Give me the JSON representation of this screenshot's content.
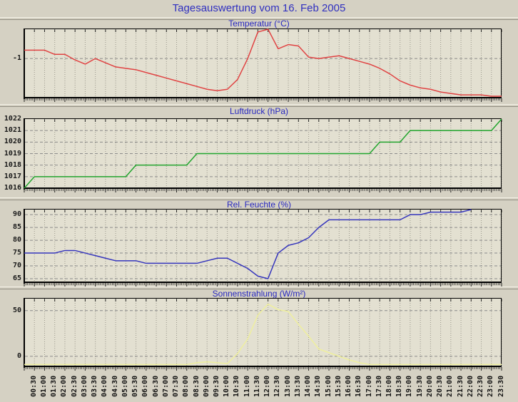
{
  "page": {
    "title": "Tagesauswertung vom 16. Feb 2005"
  },
  "colors": {
    "background": "#d5d1c3",
    "plot_background": "#e3e0d1",
    "title_text": "#3030c0",
    "axis": "#000000",
    "grid_vertical": "#9a978c",
    "grid_horizontal": "#8a8a8a",
    "tick": "#222222",
    "label_text": "#1a1a1a",
    "temperature_line": "#e04343",
    "pressure_line": "#22a52e",
    "humidity_line": "#3535bd",
    "radiation_line": "#efef9e"
  },
  "chart_data": {
    "note": "4 stacked line charts sharing one time axis; first value of each series sits on the left chart edge (00:00), remaining values align with x_labels; humidity series ends at 22:00",
    "x_labels_rotated": true,
    "grid": "on",
    "x_labels": [
      "00:30",
      "01:00",
      "01:30",
      "02:00",
      "02:30",
      "03:00",
      "03:30",
      "04:00",
      "04:30",
      "05:00",
      "05:30",
      "06:00",
      "06:30",
      "07:00",
      "07:30",
      "08:00",
      "08:30",
      "09:00",
      "09:30",
      "10:00",
      "10:30",
      "11:00",
      "11:30",
      "12:00",
      "12:30",
      "13:00",
      "13:30",
      "14:00",
      "14:30",
      "15:00",
      "15:30",
      "16:00",
      "16:30",
      "17:00",
      "17:30",
      "18:00",
      "18:30",
      "19:00",
      "19:30",
      "20:00",
      "20:30",
      "21:00",
      "21:30",
      "22:00",
      "22:30",
      "23:00",
      "23:30"
    ],
    "charts": [
      {
        "type": "line",
        "title": "Temperatur (°C)",
        "color": "#e04343",
        "ylim": [
          -2.4,
          0.05
        ],
        "yticks": [
          -1
        ],
        "ygrid": [
          -1
        ],
        "values": [
          -0.7,
          -0.7,
          -0.7,
          -0.85,
          -0.85,
          -1.05,
          -1.2,
          -1.0,
          -1.15,
          -1.3,
          -1.35,
          -1.4,
          -1.5,
          -1.6,
          -1.7,
          -1.8,
          -1.9,
          -2.0,
          -2.1,
          -2.15,
          -2.1,
          -1.75,
          -1.0,
          -0.05,
          0.05,
          -0.65,
          -0.5,
          -0.55,
          -0.95,
          -1.0,
          -0.95,
          -0.9,
          -1.0,
          -1.1,
          -1.2,
          -1.35,
          -1.55,
          -1.8,
          -1.95,
          -2.05,
          -2.1,
          -2.2,
          -2.25,
          -2.3,
          -2.3,
          -2.3,
          -2.35,
          -2.35
        ]
      },
      {
        "type": "line",
        "title": "Luftdruck (hPa)",
        "color": "#22a52e",
        "ylim": [
          1016,
          1022
        ],
        "yticks": [
          1016,
          1017,
          1018,
          1019,
          1020,
          1021,
          1022
        ],
        "ygrid": [
          1017,
          1018,
          1019,
          1020,
          1021
        ],
        "values": [
          1016,
          1017,
          1017,
          1017,
          1017,
          1017,
          1017,
          1017,
          1017,
          1017,
          1017,
          1018,
          1018,
          1018,
          1018,
          1018,
          1018,
          1019,
          1019,
          1019,
          1019,
          1019,
          1019,
          1019,
          1019,
          1019,
          1019,
          1019,
          1019,
          1019,
          1019,
          1019,
          1019,
          1019,
          1019,
          1020,
          1020,
          1020,
          1021,
          1021,
          1021,
          1021,
          1021,
          1021,
          1021,
          1021,
          1021,
          1022
        ]
      },
      {
        "type": "line",
        "title": "Rel. Feuchte (%)",
        "color": "#3535bd",
        "ylim": [
          63.6,
          92
        ],
        "yticks": [
          65,
          70,
          75,
          80,
          85,
          90
        ],
        "ygrid": [
          65,
          70,
          75,
          80,
          85,
          90
        ],
        "values": [
          75,
          75,
          75,
          75,
          76,
          76,
          75,
          74,
          73,
          72,
          72,
          72,
          71,
          71,
          71,
          71,
          71,
          71,
          72,
          73,
          73,
          71,
          69,
          66,
          65,
          75,
          78,
          79,
          81,
          85,
          88,
          88,
          88,
          88,
          88,
          88,
          88,
          88,
          90,
          90,
          91,
          91,
          91,
          91,
          92
        ]
      },
      {
        "type": "line",
        "title": "Sonnenstrahlung (W/m²)",
        "color": "#efef9e",
        "ylim": [
          -11,
          63
        ],
        "yticks": [
          0,
          50
        ],
        "ygrid": [
          0,
          50
        ],
        "values": [
          -9,
          -9,
          -9,
          -9,
          -9,
          -9,
          -9,
          -9,
          -9,
          -9,
          -9,
          -9,
          -9,
          -9,
          -9,
          -9,
          -9,
          -7,
          -6,
          -7,
          -8,
          3,
          19,
          45,
          57,
          51,
          49,
          35,
          22,
          8,
          4,
          0,
          -4,
          -7,
          -9,
          -9,
          -9,
          -9,
          -9,
          -9,
          -9,
          -9,
          -9,
          -9,
          -9,
          -9,
          -9,
          -9
        ]
      }
    ]
  }
}
